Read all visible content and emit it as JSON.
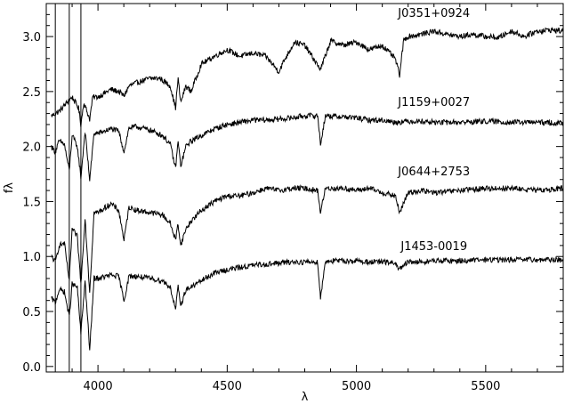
{
  "chart_data": {
    "type": "line",
    "title": "",
    "xlabel": "λ",
    "ylabel": "fλ",
    "xlim": [
      3800,
      5800
    ],
    "ylim": [
      -0.05,
      3.3
    ],
    "xticks": [
      4000,
      4500,
      5000,
      5500
    ],
    "xtick_labels": [
      "4000",
      "4500",
      "5000",
      "5500"
    ],
    "yticks": [
      0.0,
      0.5,
      1.0,
      1.5,
      2.0,
      2.5,
      3.0
    ],
    "ytick_labels": [
      "0.0",
      "0.5",
      "1.0",
      "1.5",
      "2.0",
      "2.5",
      "3.0"
    ],
    "grid": false,
    "vertical_lines_x": [
      3835,
      3889,
      3934
    ],
    "series": [
      {
        "name": "J0351+0924",
        "label_x": 5300,
        "label_y": 3.18,
        "x": [
          3820,
          3850,
          3880,
          3900,
          3925,
          3934,
          3945,
          3968,
          3980,
          4000,
          4050,
          4080,
          4101,
          4120,
          4150,
          4200,
          4240,
          4280,
          4300,
          4310,
          4320,
          4340,
          4360,
          4400,
          4450,
          4500,
          4550,
          4600,
          4650,
          4700,
          4720,
          4760,
          4800,
          4861,
          4900,
          4950,
          5000,
          5050,
          5100,
          5150,
          5167,
          5183,
          5200,
          5250,
          5300,
          5350,
          5400,
          5450,
          5500,
          5550,
          5600,
          5650,
          5700,
          5750,
          5800
        ],
        "y": [
          2.28,
          2.32,
          2.4,
          2.45,
          2.35,
          2.2,
          2.4,
          2.25,
          2.45,
          2.45,
          2.52,
          2.5,
          2.46,
          2.55,
          2.58,
          2.62,
          2.62,
          2.55,
          2.35,
          2.62,
          2.4,
          2.55,
          2.5,
          2.75,
          2.82,
          2.88,
          2.82,
          2.85,
          2.82,
          2.68,
          2.78,
          2.95,
          2.92,
          2.7,
          2.96,
          2.92,
          2.95,
          2.88,
          2.92,
          2.8,
          2.65,
          2.97,
          3.0,
          3.02,
          3.05,
          3.02,
          3.0,
          3.02,
          3.0,
          2.99,
          3.05,
          3.0,
          3.05,
          3.06,
          3.05
        ]
      },
      {
        "name": "J1159+0027",
        "label_x": 5300,
        "label_y": 2.37,
        "x": [
          3820,
          3835,
          3850,
          3870,
          3889,
          3900,
          3920,
          3934,
          3950,
          3968,
          3985,
          4000,
          4050,
          4080,
          4101,
          4120,
          4150,
          4200,
          4250,
          4280,
          4300,
          4310,
          4320,
          4340,
          4360,
          4400,
          4450,
          4500,
          4550,
          4600,
          4650,
          4700,
          4750,
          4800,
          4850,
          4861,
          4880,
          4950,
          5000,
          5050,
          5100,
          5150,
          5200,
          5250,
          5300,
          5400,
          5500,
          5600,
          5700,
          5800
        ],
        "y": [
          2.0,
          1.95,
          2.05,
          2.02,
          1.78,
          2.1,
          2.0,
          1.72,
          2.14,
          1.7,
          2.12,
          2.12,
          2.16,
          2.14,
          1.95,
          2.17,
          2.18,
          2.15,
          2.1,
          2.02,
          1.8,
          2.05,
          1.82,
          2.0,
          2.05,
          2.1,
          2.16,
          2.2,
          2.22,
          2.24,
          2.24,
          2.25,
          2.26,
          2.28,
          2.28,
          2.02,
          2.28,
          2.27,
          2.26,
          2.24,
          2.24,
          2.22,
          2.23,
          2.23,
          2.22,
          2.22,
          2.23,
          2.22,
          2.22,
          2.21
        ]
      },
      {
        "name": "J0644+2753",
        "label_x": 5300,
        "label_y": 1.74,
        "x": [
          3820,
          3835,
          3850,
          3870,
          3889,
          3900,
          3920,
          3934,
          3950,
          3968,
          3985,
          4000,
          4050,
          4080,
          4101,
          4120,
          4150,
          4200,
          4250,
          4280,
          4300,
          4310,
          4320,
          4340,
          4360,
          4400,
          4450,
          4500,
          4550,
          4600,
          4650,
          4700,
          4750,
          4800,
          4850,
          4861,
          4880,
          4950,
          5000,
          5050,
          5100,
          5150,
          5167,
          5200,
          5250,
          5300,
          5400,
          5500,
          5600,
          5700,
          5800
        ],
        "y": [
          1.0,
          0.95,
          1.1,
          1.12,
          0.78,
          1.25,
          1.18,
          0.75,
          1.35,
          0.68,
          1.4,
          1.4,
          1.48,
          1.42,
          1.15,
          1.45,
          1.42,
          1.4,
          1.38,
          1.3,
          1.15,
          1.3,
          1.1,
          1.25,
          1.32,
          1.42,
          1.5,
          1.55,
          1.55,
          1.58,
          1.62,
          1.6,
          1.62,
          1.62,
          1.6,
          1.4,
          1.62,
          1.62,
          1.6,
          1.62,
          1.58,
          1.55,
          1.4,
          1.58,
          1.6,
          1.58,
          1.6,
          1.62,
          1.62,
          1.6,
          1.62
        ]
      },
      {
        "name": "J1453-0019",
        "label_x": 5300,
        "label_y": 1.06,
        "x": [
          3820,
          3835,
          3850,
          3870,
          3889,
          3900,
          3920,
          3934,
          3950,
          3968,
          3985,
          4000,
          4050,
          4080,
          4101,
          4120,
          4150,
          4200,
          4250,
          4280,
          4300,
          4310,
          4320,
          4340,
          4360,
          4400,
          4450,
          4500,
          4550,
          4600,
          4650,
          4700,
          4750,
          4800,
          4850,
          4861,
          4880,
          4950,
          5000,
          5050,
          5100,
          5150,
          5167,
          5200,
          5250,
          5300,
          5400,
          5500,
          5600,
          5700,
          5800
        ],
        "y": [
          0.62,
          0.58,
          0.7,
          0.68,
          0.45,
          0.75,
          0.72,
          0.3,
          0.78,
          0.15,
          0.8,
          0.8,
          0.83,
          0.82,
          0.6,
          0.82,
          0.82,
          0.8,
          0.78,
          0.72,
          0.52,
          0.72,
          0.55,
          0.7,
          0.72,
          0.78,
          0.85,
          0.88,
          0.9,
          0.92,
          0.93,
          0.94,
          0.95,
          0.95,
          0.95,
          0.62,
          0.96,
          0.96,
          0.96,
          0.95,
          0.95,
          0.94,
          0.88,
          0.95,
          0.95,
          0.96,
          0.96,
          0.97,
          0.97,
          0.97,
          0.97
        ]
      }
    ]
  }
}
